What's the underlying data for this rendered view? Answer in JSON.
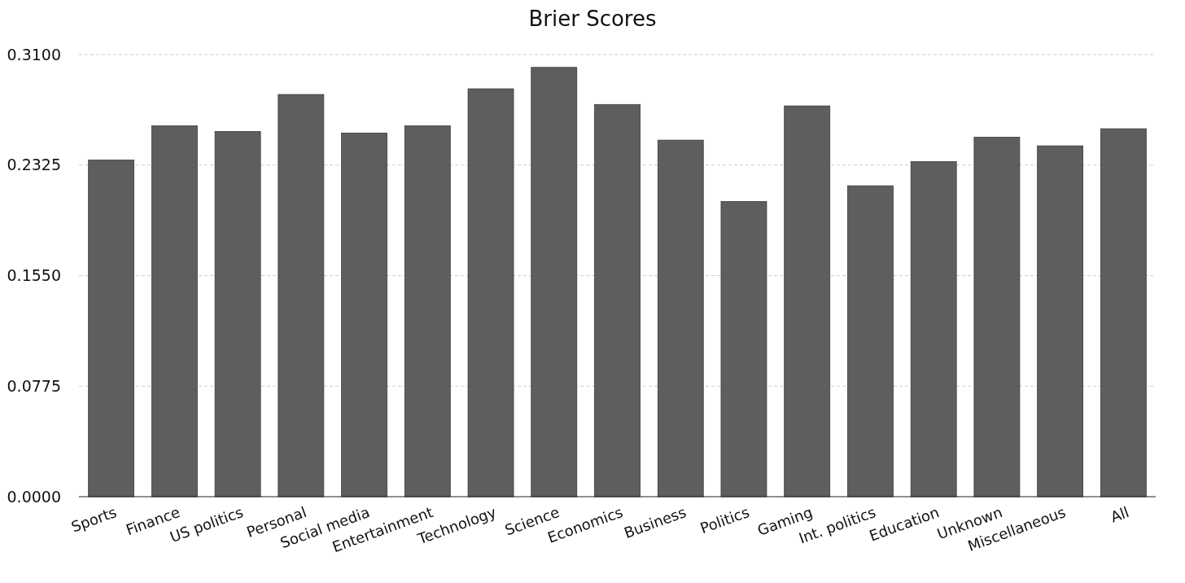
{
  "chart_data": {
    "type": "bar",
    "title": "Brier Scores",
    "categories": [
      "Sports",
      "Finance",
      "US politics",
      "Personal",
      "Social media",
      "Entertainment",
      "Technology",
      "Science",
      "Economics",
      "Business",
      "Politics",
      "Gaming",
      "Int. politics",
      "Education",
      "Unknown",
      "Miscellaneous",
      "All"
    ],
    "values": [
      0.236,
      0.26,
      0.256,
      0.282,
      0.255,
      0.26,
      0.286,
      0.301,
      0.275,
      0.25,
      0.207,
      0.274,
      0.218,
      0.235,
      0.252,
      0.246,
      0.258
    ],
    "color": "#5e5e5e",
    "ylim": [
      0,
      0.31
    ],
    "yticks": [
      {
        "value": 0,
        "label": "0.0000"
      },
      {
        "value": 0.0775,
        "label": "0.0775"
      },
      {
        "value": 0.155,
        "label": "0.1550"
      },
      {
        "value": 0.2325,
        "label": "0.2325"
      },
      {
        "value": 0.31,
        "label": "0.3100"
      }
    ],
    "grid": "y"
  }
}
